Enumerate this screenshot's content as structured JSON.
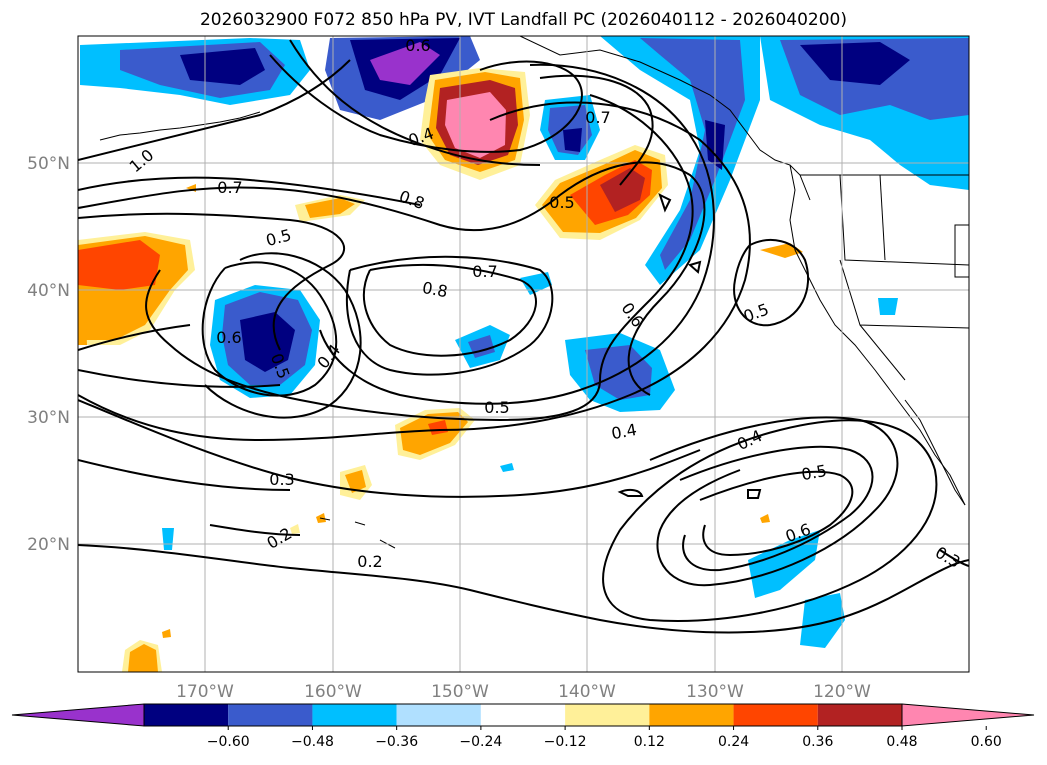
{
  "title": "2026032900 F072 850 hPa PV, IVT Landfall PC (2026040112 - 2026040200)",
  "lat_labels": [
    "50°N",
    "40°N",
    "30°N",
    "20°N"
  ],
  "lon_labels": [
    "170°W",
    "160°W",
    "150°W",
    "140°W",
    "130°W",
    "120°W"
  ],
  "colorbar": {
    "tick_labels": [
      "−0.60",
      "−0.48",
      "−0.36",
      "−0.24",
      "−0.12",
      "0.12",
      "0.24",
      "0.36",
      "0.48",
      "0.60"
    ],
    "colors": [
      "#9932cc",
      "#000080",
      "#3a5bcc",
      "#00bfff",
      "#b0e0ff",
      "#ffffff",
      "#fff099",
      "#ffa500",
      "#ff4500",
      "#b22222",
      "#ff86b0"
    ]
  },
  "contour_labels": [
    "0.6",
    "0.4",
    "0.7",
    "0.5",
    "0.7",
    "0.8",
    "1.0",
    "0.5",
    "0.7",
    "0.8",
    "0.6",
    "0.5",
    "0.4",
    "0.5",
    "0.6",
    "0.5",
    "0.4",
    "0.3",
    "0.2",
    "0.2",
    "0.4",
    "0.5",
    "0.6",
    "0.3"
  ],
  "colors": {
    "grid": "#b0b0b0",
    "frame": "#000000",
    "contour": "#000000"
  }
}
